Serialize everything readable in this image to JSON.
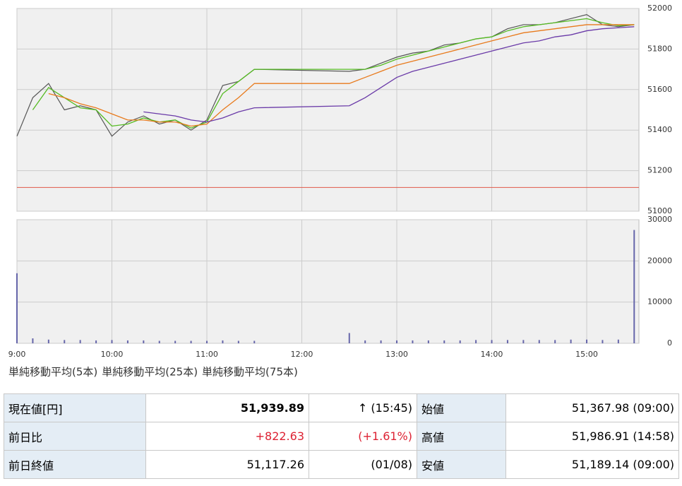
{
  "chart_data": {
    "type": "line",
    "x": [
      "9:00",
      "9:10",
      "9:20",
      "9:30",
      "9:40",
      "9:50",
      "10:00",
      "10:10",
      "10:20",
      "10:30",
      "10:40",
      "10:50",
      "11:00",
      "11:10",
      "11:20",
      "11:30",
      "12:30",
      "12:40",
      "12:50",
      "13:00",
      "13:10",
      "13:20",
      "13:30",
      "13:40",
      "13:50",
      "14:00",
      "14:10",
      "14:20",
      "14:30",
      "14:40",
      "14:50",
      "15:00",
      "15:10",
      "15:20",
      "15:30"
    ],
    "xlim": [
      "9:00",
      "15:33"
    ],
    "xticks": [
      "9:00",
      "10:00",
      "11:00",
      "12:00",
      "13:00",
      "14:00",
      "15:00"
    ],
    "price": {
      "color": "#555555",
      "values": [
        51370,
        51560,
        51630,
        51500,
        51520,
        51500,
        51370,
        51440,
        51470,
        51430,
        51450,
        51400,
        51450,
        51620,
        51640,
        51700,
        51690,
        51700,
        51730,
        51760,
        51780,
        51790,
        51820,
        51830,
        51850,
        51860,
        51900,
        51920,
        51920,
        51930,
        51950,
        51970,
        51920,
        51910,
        51920
      ]
    },
    "series": [
      {
        "name": "単純移動平均(5本)",
        "color": "#55bb22",
        "values": [
          null,
          51500,
          51610,
          51560,
          51510,
          51500,
          51420,
          51430,
          51460,
          51440,
          51450,
          51410,
          51440,
          51580,
          51640,
          51700,
          51700,
          51700,
          51720,
          51750,
          51770,
          51790,
          51810,
          51830,
          51850,
          51860,
          51890,
          51910,
          51920,
          51930,
          51940,
          51950,
          51930,
          51915,
          51920
        ]
      },
      {
        "name": "単純移動平均(25本)",
        "color": "#e87a1c",
        "values": [
          null,
          null,
          51580,
          51560,
          51530,
          51510,
          51480,
          51450,
          51450,
          51440,
          51440,
          51420,
          51430,
          51500,
          51560,
          51630,
          51630,
          51660,
          51690,
          51720,
          51740,
          51760,
          51780,
          51800,
          51820,
          51840,
          51860,
          51880,
          51890,
          51900,
          51910,
          51920,
          51920,
          51920,
          51920
        ]
      },
      {
        "name": "単純移動平均(75本)",
        "color": "#6a3aa8",
        "values": [
          null,
          null,
          null,
          null,
          null,
          null,
          null,
          null,
          51490,
          51480,
          51470,
          51450,
          51440,
          51460,
          51490,
          51510,
          51520,
          51560,
          51610,
          51660,
          51690,
          51710,
          51730,
          51750,
          51770,
          51790,
          51810,
          51830,
          51840,
          51860,
          51870,
          51890,
          51900,
          51905,
          51910
        ]
      }
    ],
    "ylim": [
      51000,
      52000
    ],
    "yticks": [
      51000,
      51200,
      51400,
      51600,
      51800,
      52000
    ],
    "volume": {
      "color": "#6666aa",
      "values": [
        17000,
        1200,
        900,
        800,
        800,
        700,
        800,
        700,
        700,
        600,
        600,
        600,
        600,
        700,
        600,
        600,
        2500,
        700,
        700,
        700,
        700,
        700,
        700,
        700,
        800,
        800,
        800,
        800,
        800,
        800,
        900,
        900,
        800,
        900,
        27500
      ],
      "ylim": [
        0,
        30000
      ],
      "yticks": [
        0,
        10000,
        20000,
        30000
      ]
    },
    "grid": true
  },
  "table": {
    "rows": [
      [
        "現在値[円]",
        "51,939.89",
        "↑ (15:45)",
        "始値",
        "51,367.98 (09:00)"
      ],
      [
        "前日比",
        "+822.63",
        "(+1.61%)",
        "高値",
        "51,986.91 (14:58)"
      ],
      [
        "前日終値",
        "51,117.26",
        "(01/08)",
        "安値",
        "51,189.14 (09:00)"
      ]
    ],
    "prev_close": 51117.26
  }
}
